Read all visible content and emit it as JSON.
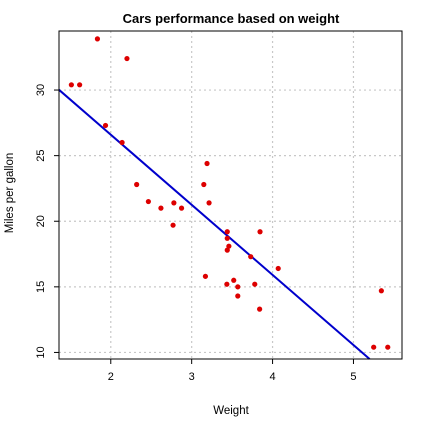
{
  "chart_data": {
    "type": "scatter",
    "title": "Cars performance based on weight",
    "xlabel": "Weight",
    "ylabel": "Miles per gallon",
    "xlim": [
      1.36,
      5.6
    ],
    "ylim": [
      9.5,
      34.5
    ],
    "xticks": [
      "2",
      "3",
      "4",
      "5"
    ],
    "yticks": [
      "10",
      "15",
      "20",
      "25",
      "30"
    ],
    "grid": true,
    "legend": "none",
    "colors": {
      "points": "#dd0000",
      "fit_line": "#0000cc",
      "grid": "#c8c8c8",
      "axes": "#000000"
    },
    "points": [
      {
        "x": 1.513,
        "y": 30.4
      },
      {
        "x": 1.615,
        "y": 30.4
      },
      {
        "x": 1.835,
        "y": 33.9
      },
      {
        "x": 1.935,
        "y": 27.3
      },
      {
        "x": 2.14,
        "y": 26.0
      },
      {
        "x": 2.2,
        "y": 32.4
      },
      {
        "x": 2.32,
        "y": 22.8
      },
      {
        "x": 2.465,
        "y": 21.5
      },
      {
        "x": 2.62,
        "y": 21.0
      },
      {
        "x": 2.77,
        "y": 19.7
      },
      {
        "x": 2.78,
        "y": 21.4
      },
      {
        "x": 2.875,
        "y": 21.0
      },
      {
        "x": 3.15,
        "y": 22.8
      },
      {
        "x": 3.17,
        "y": 15.8
      },
      {
        "x": 3.19,
        "y": 24.4
      },
      {
        "x": 3.215,
        "y": 21.4
      },
      {
        "x": 3.435,
        "y": 15.2
      },
      {
        "x": 3.44,
        "y": 18.7
      },
      {
        "x": 3.44,
        "y": 19.2
      },
      {
        "x": 3.46,
        "y": 18.1
      },
      {
        "x": 3.52,
        "y": 15.5
      },
      {
        "x": 3.57,
        "y": 14.3
      },
      {
        "x": 3.57,
        "y": 15.0
      },
      {
        "x": 3.73,
        "y": 17.3
      },
      {
        "x": 3.78,
        "y": 15.2
      },
      {
        "x": 3.84,
        "y": 13.3
      },
      {
        "x": 3.845,
        "y": 19.2
      },
      {
        "x": 4.07,
        "y": 16.4
      },
      {
        "x": 5.25,
        "y": 10.4
      },
      {
        "x": 5.345,
        "y": 14.7
      },
      {
        "x": 5.424,
        "y": 10.4
      },
      {
        "x": 3.44,
        "y": 17.8
      }
    ],
    "fit_line": {
      "intercept": 37.285,
      "slope": -5.344
    }
  }
}
